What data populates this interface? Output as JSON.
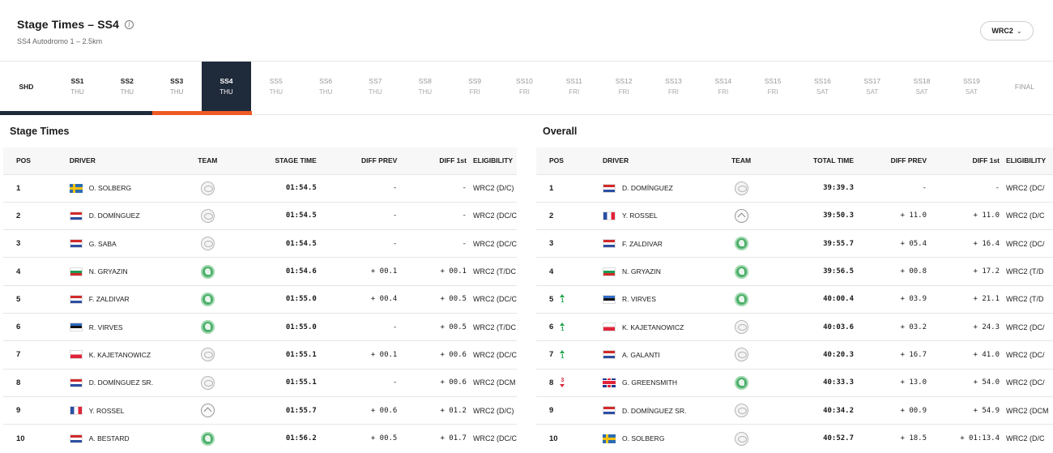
{
  "header": {
    "title": "Stage Times – SS4",
    "subtitle": "SS4 Autodromo 1 – 2.5km",
    "class_select": "WRC2"
  },
  "tabs": [
    {
      "name": "SHD",
      "day": "",
      "state": "single"
    },
    {
      "name": "SS1",
      "day": "THU",
      "state": "done"
    },
    {
      "name": "SS2",
      "day": "THU",
      "state": "done"
    },
    {
      "name": "SS3",
      "day": "THU",
      "state": "done"
    },
    {
      "name": "SS4",
      "day": "THU",
      "state": "active"
    },
    {
      "name": "SS5",
      "day": "THU",
      "state": "future"
    },
    {
      "name": "SS6",
      "day": "THU",
      "state": "future"
    },
    {
      "name": "SS7",
      "day": "THU",
      "state": "future"
    },
    {
      "name": "SS8",
      "day": "THU",
      "state": "future"
    },
    {
      "name": "SS9",
      "day": "FRI",
      "state": "future"
    },
    {
      "name": "SS10",
      "day": "FRI",
      "state": "future"
    },
    {
      "name": "SS11",
      "day": "FRI",
      "state": "future"
    },
    {
      "name": "SS12",
      "day": "FRI",
      "state": "future"
    },
    {
      "name": "SS13",
      "day": "FRI",
      "state": "future"
    },
    {
      "name": "SS14",
      "day": "FRI",
      "state": "future"
    },
    {
      "name": "SS15",
      "day": "FRI",
      "state": "future"
    },
    {
      "name": "SS16",
      "day": "SAT",
      "state": "future"
    },
    {
      "name": "SS17",
      "day": "SAT",
      "state": "future"
    },
    {
      "name": "SS18",
      "day": "SAT",
      "state": "future"
    },
    {
      "name": "SS19",
      "day": "SAT",
      "state": "future"
    },
    {
      "name": "FINAL",
      "day": "",
      "state": "final"
    }
  ],
  "stage_times": {
    "title": "Stage Times",
    "columns": {
      "pos": "POS",
      "driver": "DRIVER",
      "team": "TEAM",
      "time": "STAGE TIME",
      "diff_prev": "DIFF PREV",
      "diff_first": "DIFF 1st",
      "eligibility": "ELIGIBILITY"
    },
    "rows": [
      {
        "pos": "1",
        "flag": "se",
        "driver": "O. SOLBERG",
        "team": "toyota",
        "time": "01:54.5",
        "diff_prev": "-",
        "diff_first": "-",
        "eligibility": "WRC2 (D/C)"
      },
      {
        "pos": "2",
        "flag": "py",
        "driver": "D. DOMÍNGUEZ",
        "team": "toyota",
        "time": "01:54.5",
        "diff_prev": "-",
        "diff_first": "-",
        "eligibility": "WRC2 (DC/C"
      },
      {
        "pos": "3",
        "flag": "py",
        "driver": "G. SABA",
        "team": "toyota",
        "time": "01:54.5",
        "diff_prev": "-",
        "diff_first": "-",
        "eligibility": "WRC2 (DC/C"
      },
      {
        "pos": "4",
        "flag": "bg",
        "driver": "N. GRYAZIN",
        "team": "skoda",
        "time": "01:54.6",
        "diff_prev": "+ 00.1",
        "diff_first": "+ 00.1",
        "eligibility": "WRC2 (T/DC"
      },
      {
        "pos": "5",
        "flag": "py",
        "driver": "F. ZALDIVAR",
        "team": "skoda",
        "time": "01:55.0",
        "diff_prev": "+ 00.4",
        "diff_first": "+ 00.5",
        "eligibility": "WRC2 (DC/C"
      },
      {
        "pos": "6",
        "flag": "ee",
        "driver": "R. VIRVES",
        "team": "skoda",
        "time": "01:55.0",
        "diff_prev": "-",
        "diff_first": "+ 00.5",
        "eligibility": "WRC2 (T/DC"
      },
      {
        "pos": "7",
        "flag": "pl",
        "driver": "K. KAJETANOWICZ",
        "team": "toyota",
        "time": "01:55.1",
        "diff_prev": "+ 00.1",
        "diff_first": "+ 00.6",
        "eligibility": "WRC2 (DC/C"
      },
      {
        "pos": "8",
        "flag": "py",
        "driver": "D. DOMÍNGUEZ SR.",
        "team": "toyota",
        "time": "01:55.1",
        "diff_prev": "-",
        "diff_first": "+ 00.6",
        "eligibility": "WRC2 (DCM"
      },
      {
        "pos": "9",
        "flag": "fr",
        "driver": "Y. ROSSEL",
        "team": "citroen",
        "time": "01:55.7",
        "diff_prev": "+ 00.6",
        "diff_first": "+ 01.2",
        "eligibility": "WRC2 (D/C)"
      },
      {
        "pos": "10",
        "flag": "py",
        "driver": "A. BESTARD",
        "team": "skoda",
        "time": "01:56.2",
        "diff_prev": "+ 00.5",
        "diff_first": "+ 01.7",
        "eligibility": "WRC2 (DC/C"
      }
    ]
  },
  "overall": {
    "title": "Overall",
    "columns": {
      "pos": "POS",
      "driver": "DRIVER",
      "team": "TEAM",
      "time": "TOTAL TIME",
      "diff_prev": "DIFF PREV",
      "diff_first": "DIFF 1st",
      "eligibility": "ELIGIBILITY"
    },
    "rows": [
      {
        "pos": "1",
        "move": "",
        "move_dir": "",
        "flag": "py",
        "driver": "D. DOMÍNGUEZ",
        "team": "toyota",
        "time": "39:39.3",
        "diff_prev": "-",
        "diff_first": "-",
        "eligibility": "WRC2 (DC/"
      },
      {
        "pos": "2",
        "move": "",
        "move_dir": "",
        "flag": "fr",
        "driver": "Y. ROSSEL",
        "team": "citroen",
        "time": "39:50.3",
        "diff_prev": "+ 11.0",
        "diff_first": "+ 11.0",
        "eligibility": "WRC2 (D/C"
      },
      {
        "pos": "3",
        "move": "",
        "move_dir": "",
        "flag": "py",
        "driver": "F. ZALDIVAR",
        "team": "skoda",
        "time": "39:55.7",
        "diff_prev": "+ 05.4",
        "diff_first": "+ 16.4",
        "eligibility": "WRC2 (DC/"
      },
      {
        "pos": "4",
        "move": "",
        "move_dir": "",
        "flag": "bg",
        "driver": "N. GRYAZIN",
        "team": "skoda",
        "time": "39:56.5",
        "diff_prev": "+ 00.8",
        "diff_first": "+ 17.2",
        "eligibility": "WRC2 (T/D"
      },
      {
        "pos": "5",
        "move": "1",
        "move_dir": "up",
        "flag": "ee",
        "driver": "R. VIRVES",
        "team": "skoda",
        "time": "40:00.4",
        "diff_prev": "+ 03.9",
        "diff_first": "+ 21.1",
        "eligibility": "WRC2 (T/D"
      },
      {
        "pos": "6",
        "move": "1",
        "move_dir": "up",
        "flag": "pl",
        "driver": "K. KAJETANOWICZ",
        "team": "toyota",
        "time": "40:03.6",
        "diff_prev": "+ 03.2",
        "diff_first": "+ 24.3",
        "eligibility": "WRC2 (DC/"
      },
      {
        "pos": "7",
        "move": "1",
        "move_dir": "up",
        "flag": "py",
        "driver": "A. GALANTI",
        "team": "toyota",
        "time": "40:20.3",
        "diff_prev": "+ 16.7",
        "diff_first": "+ 41.0",
        "eligibility": "WRC2 (DC/"
      },
      {
        "pos": "8",
        "move": "3",
        "move_dir": "down",
        "flag": "gb",
        "driver": "G. GREENSMITH",
        "team": "skoda",
        "time": "40:33.3",
        "diff_prev": "+ 13.0",
        "diff_first": "+ 54.0",
        "eligibility": "WRC2 (DC/"
      },
      {
        "pos": "9",
        "move": "",
        "move_dir": "",
        "flag": "py",
        "driver": "D. DOMÍNGUEZ SR.",
        "team": "toyota",
        "time": "40:34.2",
        "diff_prev": "+ 00.9",
        "diff_first": "+ 54.9",
        "eligibility": "WRC2 (DCM"
      },
      {
        "pos": "10",
        "move": "",
        "move_dir": "",
        "flag": "se",
        "driver": "O. SOLBERG",
        "team": "toyota",
        "time": "40:52.7",
        "diff_prev": "+ 18.5",
        "diff_first": "+ 01:13.4",
        "eligibility": "WRC2 (D/C"
      }
    ]
  },
  "colors": {
    "active_tab": "#1f2a3a",
    "progress_done": "#1f2a3a",
    "progress_current": "#ef5a24",
    "gain": "#20a34c",
    "loss": "#d6263a"
  }
}
